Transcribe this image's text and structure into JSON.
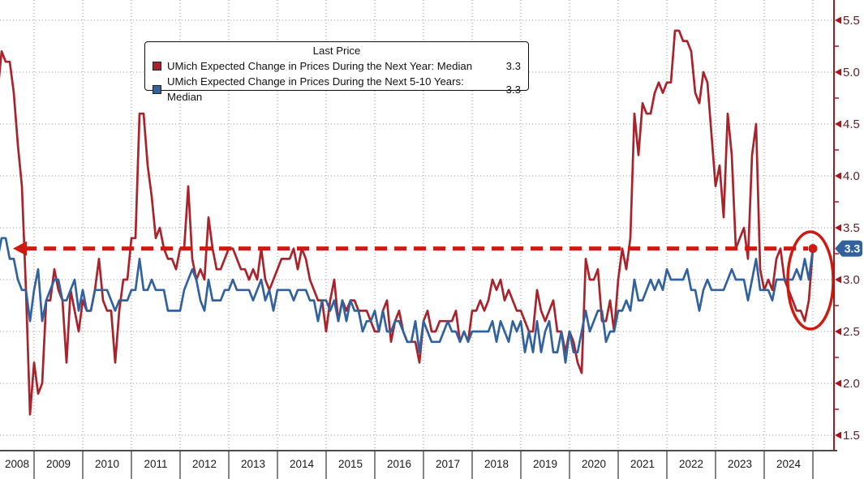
{
  "legend": {
    "title": "Last Price",
    "series": [
      {
        "label": "UMich Expected Change in Prices During the Next Year: Median",
        "value": "3.3",
        "color": "#A8232B"
      },
      {
        "label": "UMich Expected Change in Prices During the Next 5-10 Years: Median",
        "value": "3.3",
        "color": "#31629E"
      }
    ]
  },
  "y_axis": {
    "tick_labels": [
      "5.5",
      "5.0",
      "4.5",
      "4.0",
      "3.5",
      "3.0",
      "2.5",
      "2.0",
      "1.5"
    ],
    "minor_ticks": [
      5.25,
      4.75,
      4.25,
      3.75,
      3.25,
      2.75,
      2.25,
      1.75
    ],
    "axis_color": "#9A1B24",
    "arrow_color": "#9A1B24",
    "badge": {
      "label": "3.3",
      "color": "#33619E",
      "text_color": "#ffffff"
    }
  },
  "x_axis": {
    "year_labels": [
      "2008",
      "2009",
      "2010",
      "2011",
      "2012",
      "2013",
      "2014",
      "2015",
      "2016",
      "2017",
      "2018",
      "2019",
      "2020",
      "2021",
      "2022",
      "2023",
      "2024"
    ]
  },
  "chart_data": {
    "type": "line",
    "title": "Last Price",
    "x_start": "2008-04",
    "x_end": "2025-01",
    "x_frequency": "monthly",
    "ylabel": "",
    "xlabel": "",
    "ylim": [
      1.5,
      5.5
    ],
    "y_ticks": [
      1.5,
      2.0,
      2.5,
      3.0,
      3.5,
      4.0,
      4.5,
      5.0,
      5.5
    ],
    "grid": true,
    "legend_position": "top-center",
    "series": [
      {
        "name": "UMich Expected Change in Prices During the Next Year: Median",
        "color": "#A8232B",
        "last": 3.3,
        "values": [
          4.8,
          5.2,
          5.1,
          5.1,
          4.8,
          4.3,
          3.9,
          2.9,
          1.7,
          2.2,
          1.9,
          2.0,
          2.8,
          2.8,
          3.1,
          2.9,
          2.8,
          2.2,
          2.9,
          2.7,
          2.5,
          2.8,
          2.7,
          2.7,
          2.9,
          3.2,
          2.8,
          2.7,
          2.7,
          2.2,
          2.7,
          3.0,
          3.0,
          3.4,
          3.4,
          4.6,
          4.6,
          4.1,
          3.8,
          3.4,
          3.5,
          3.3,
          3.2,
          3.2,
          3.1,
          3.3,
          3.3,
          3.9,
          3.2,
          3.0,
          3.1,
          3.0,
          3.6,
          3.3,
          3.1,
          3.1,
          3.2,
          3.3,
          3.3,
          3.2,
          3.1,
          3.1,
          3.0,
          3.1,
          3.0,
          3.3,
          3.0,
          2.9,
          3.0,
          3.1,
          3.2,
          3.2,
          3.2,
          3.3,
          3.1,
          3.3,
          3.2,
          3.0,
          2.9,
          2.8,
          2.8,
          2.5,
          2.8,
          3.0,
          2.6,
          2.8,
          2.7,
          2.8,
          2.8,
          2.7,
          2.7,
          2.7,
          2.6,
          2.5,
          2.5,
          2.7,
          2.8,
          2.4,
          2.6,
          2.7,
          2.5,
          2.4,
          2.4,
          2.4,
          2.2,
          2.6,
          2.7,
          2.5,
          2.5,
          2.6,
          2.6,
          2.6,
          2.6,
          2.7,
          2.4,
          2.5,
          2.4,
          2.7,
          2.7,
          2.8,
          2.7,
          2.8,
          3.0,
          2.9,
          3.0,
          2.8,
          2.9,
          2.8,
          2.7,
          2.7,
          2.6,
          2.5,
          2.5,
          2.9,
          2.7,
          2.6,
          2.7,
          2.8,
          2.5,
          2.5,
          2.3,
          2.5,
          2.4,
          2.2,
          2.1,
          3.2,
          3.0,
          3.0,
          3.1,
          2.6,
          2.6,
          2.8,
          2.5,
          3.0,
          3.3,
          3.1,
          3.4,
          4.6,
          4.2,
          4.7,
          4.6,
          4.6,
          4.8,
          4.9,
          4.8,
          4.9,
          4.9,
          5.4,
          5.4,
          5.3,
          5.3,
          5.2,
          4.8,
          4.7,
          5.0,
          4.9,
          4.4,
          3.9,
          4.1,
          3.6,
          4.6,
          4.2,
          3.3,
          3.4,
          3.5,
          3.2,
          4.2,
          4.5,
          3.1,
          2.9,
          3.0,
          2.9,
          3.2,
          3.3,
          3.0,
          2.9,
          2.8,
          2.7,
          2.7,
          2.6,
          2.8,
          3.3
        ]
      },
      {
        "name": "UMich Expected Change in Prices During the Next 5-10 Years: Median",
        "color": "#31629E",
        "last": 3.3,
        "values": [
          3.2,
          3.4,
          3.4,
          3.2,
          3.2,
          3.0,
          2.9,
          2.9,
          2.6,
          2.9,
          3.1,
          2.6,
          2.8,
          2.9,
          3.0,
          3.0,
          2.8,
          2.8,
          2.9,
          3.0,
          2.7,
          2.9,
          2.7,
          2.7,
          2.9,
          2.9,
          2.9,
          2.9,
          2.8,
          2.7,
          2.8,
          2.8,
          2.8,
          2.9,
          2.9,
          3.2,
          2.9,
          2.9,
          3.0,
          2.9,
          2.9,
          2.9,
          2.7,
          2.7,
          2.7,
          2.7,
          2.9,
          3.0,
          3.1,
          3.0,
          2.8,
          2.7,
          3.0,
          2.8,
          2.8,
          2.8,
          2.9,
          2.9,
          3.0,
          2.9,
          2.9,
          2.9,
          2.9,
          2.8,
          2.9,
          3.0,
          2.8,
          2.9,
          2.7,
          2.9,
          2.9,
          2.9,
          2.9,
          2.8,
          2.9,
          2.9,
          2.9,
          2.8,
          2.8,
          2.6,
          2.8,
          2.8,
          2.7,
          2.8,
          2.6,
          2.8,
          2.6,
          2.8,
          2.7,
          2.7,
          2.5,
          2.6,
          2.6,
          2.7,
          2.5,
          2.7,
          2.5,
          2.5,
          2.6,
          2.6,
          2.5,
          2.4,
          2.4,
          2.6,
          2.3,
          2.6,
          2.5,
          2.4,
          2.4,
          2.4,
          2.5,
          2.6,
          2.5,
          2.5,
          2.4,
          2.5,
          2.4,
          2.5,
          2.5,
          2.5,
          2.5,
          2.5,
          2.6,
          2.4,
          2.6,
          2.5,
          2.4,
          2.6,
          2.5,
          2.6,
          2.3,
          2.5,
          2.3,
          2.6,
          2.3,
          2.5,
          2.6,
          2.3,
          2.3,
          2.5,
          2.2,
          2.5,
          2.3,
          2.3,
          2.5,
          2.7,
          2.5,
          2.6,
          2.7,
          2.7,
          2.4,
          2.5,
          2.5,
          2.7,
          2.7,
          2.8,
          2.7,
          3.0,
          2.8,
          2.8,
          2.9,
          3.0,
          2.9,
          3.0,
          2.9,
          3.1,
          3.0,
          3.0,
          3.0,
          3.0,
          3.1,
          2.9,
          2.9,
          2.7,
          2.9,
          3.0,
          2.9,
          2.9,
          2.9,
          2.9,
          3.0,
          3.1,
          3.0,
          3.0,
          3.0,
          2.8,
          3.0,
          3.2,
          2.9,
          2.9,
          2.9,
          2.8,
          3.0,
          3.0,
          3.0,
          3.0,
          3.0,
          3.1,
          3.0,
          3.2,
          3.0,
          3.3
        ]
      }
    ],
    "annotations": {
      "level_line": {
        "value": 3.3,
        "label": "3.3",
        "style": "dashed",
        "arrow": "left",
        "end_dot": true,
        "color": "#CE1B12"
      },
      "ellipse": {
        "color": "#CE1B12"
      }
    }
  }
}
